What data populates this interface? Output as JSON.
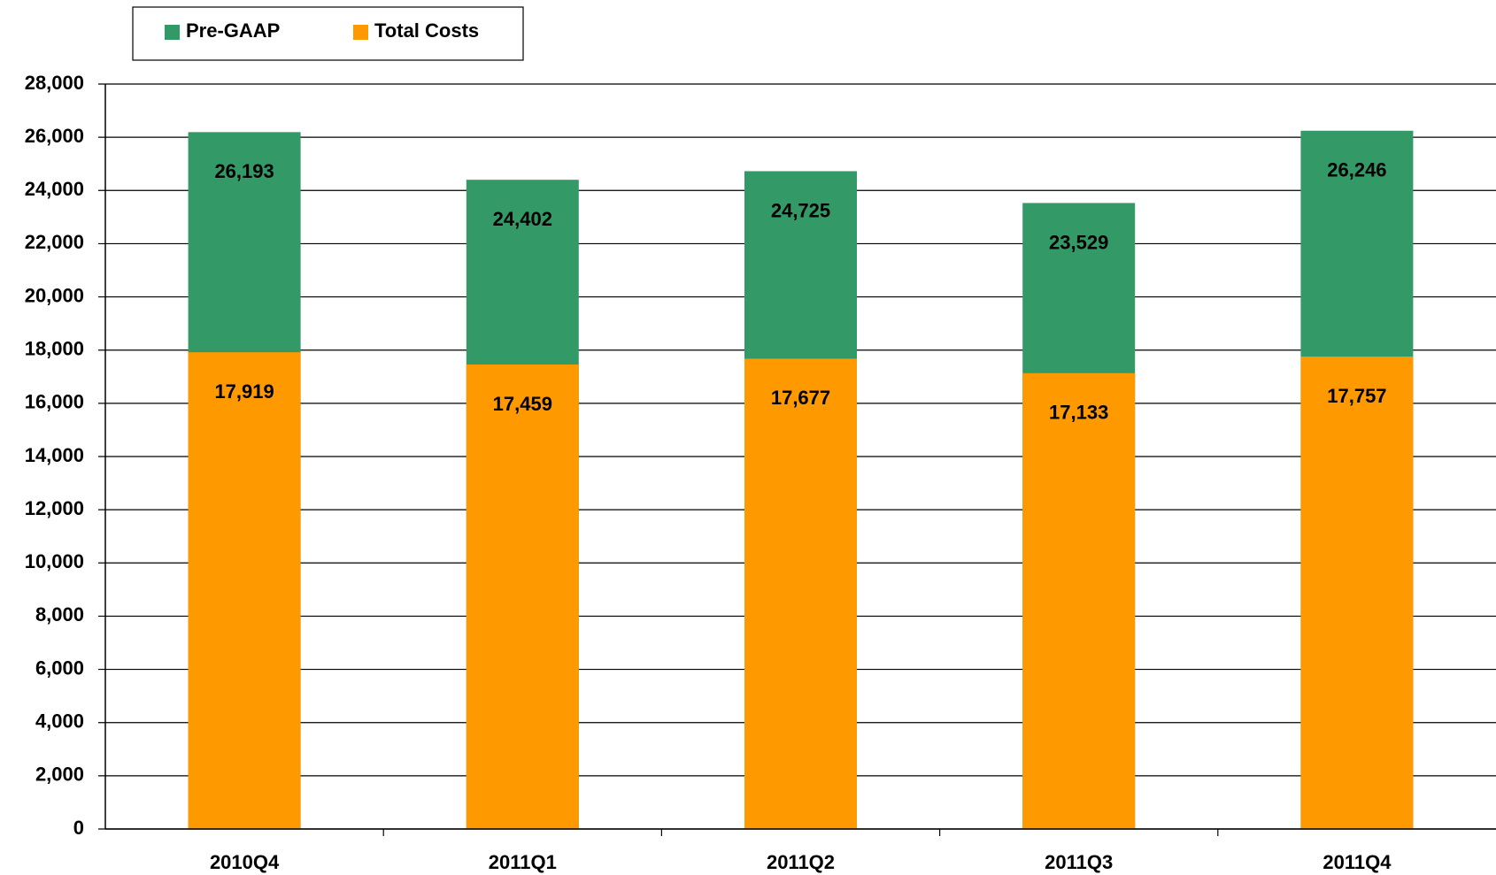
{
  "chart_data": {
    "type": "bar",
    "categories": [
      "2010Q4",
      "2011Q1",
      "2011Q2",
      "2011Q3",
      "2011Q4"
    ],
    "series": [
      {
        "name": "Pre-GAAP",
        "color": "#339966",
        "values": [
          26193,
          24402,
          24725,
          23529,
          26246
        ],
        "value_labels": [
          "26,193",
          "24,402",
          "24,725",
          "23,529",
          "26,246"
        ]
      },
      {
        "name": "Total Costs",
        "color": "#ff9900",
        "values": [
          17919,
          17459,
          17677,
          17133,
          17757
        ],
        "value_labels": [
          "17,919",
          "17,459",
          "17,677",
          "17,133",
          "17,757"
        ]
      }
    ],
    "ylim": [
      0,
      28000
    ],
    "yticks": [
      {
        "value": 0,
        "label": "0"
      },
      {
        "value": 2000,
        "label": "2,000"
      },
      {
        "value": 4000,
        "label": "4,000"
      },
      {
        "value": 6000,
        "label": "6,000"
      },
      {
        "value": 8000,
        "label": "8,000"
      },
      {
        "value": 10000,
        "label": "10,000"
      },
      {
        "value": 12000,
        "label": "12,000"
      },
      {
        "value": 14000,
        "label": "14,000"
      },
      {
        "value": 16000,
        "label": "16,000"
      },
      {
        "value": 18000,
        "label": "18,000"
      },
      {
        "value": 20000,
        "label": "20,000"
      },
      {
        "value": 22000,
        "label": "22,000"
      },
      {
        "value": 24000,
        "label": "24,000"
      },
      {
        "value": 26000,
        "label": "26,000"
      },
      {
        "value": 28000,
        "label": "28,000"
      }
    ],
    "grid": true,
    "legend": "top-left"
  }
}
